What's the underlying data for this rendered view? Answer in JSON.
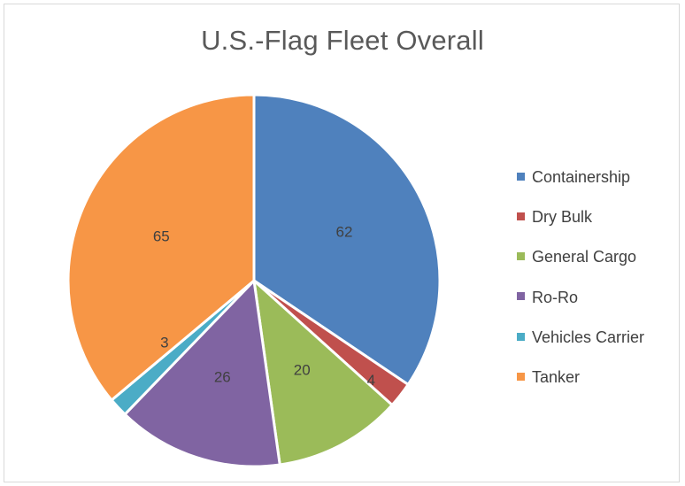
{
  "chart_data": {
    "type": "pie",
    "title": "U.S.-Flag Fleet Overall",
    "legend_position": "right",
    "slices": [
      {
        "label": "Containership",
        "value": 62,
        "color": "#4f81bd"
      },
      {
        "label": "Dry Bulk",
        "value": 4,
        "color": "#c0504d"
      },
      {
        "label": "General Cargo",
        "value": 20,
        "color": "#9bbb59"
      },
      {
        "label": "Ro-Ro",
        "value": 26,
        "color": "#8064a2"
      },
      {
        "label": "Vehicles Carrier",
        "value": 3,
        "color": "#4bacc6"
      },
      {
        "label": "Tanker",
        "value": 65,
        "color": "#f79646"
      }
    ]
  }
}
